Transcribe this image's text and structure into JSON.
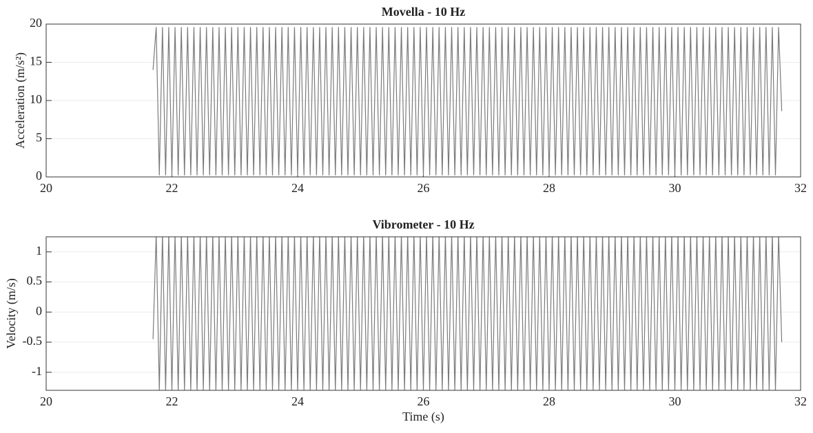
{
  "chart_data": [
    {
      "type": "line",
      "title": "Movella - 10 Hz",
      "y_label": "Acceleration (m/s²)",
      "color": "#7a7a7a",
      "grid": true,
      "xlim": [
        20,
        32
      ],
      "xticks": [
        20,
        22,
        24,
        26,
        28,
        30,
        32
      ],
      "ylim": [
        0,
        20
      ],
      "yticks": [
        0,
        5,
        10,
        15,
        20
      ],
      "x": [
        21.7,
        21.75,
        21.8,
        21.85,
        21.9,
        21.95,
        22,
        22.05,
        22.1,
        22.15,
        22.2,
        22.25,
        22.3,
        22.35,
        22.4,
        22.45,
        22.5,
        22.55,
        22.6,
        22.65,
        22.7,
        22.75,
        22.8,
        22.85,
        22.9,
        22.95,
        23,
        23.05,
        23.1,
        23.15,
        23.2,
        23.25,
        23.3,
        23.35,
        23.4,
        23.45,
        23.5,
        23.55,
        23.6,
        23.65,
        23.7,
        23.75,
        23.8,
        23.85,
        23.9,
        23.95,
        24,
        24.05,
        24.1,
        24.15,
        24.2,
        24.25,
        24.3,
        24.35,
        24.4,
        24.45,
        24.5,
        24.55,
        24.6,
        24.65,
        24.7,
        24.75,
        24.8,
        24.85,
        24.9,
        24.95,
        25,
        25.05,
        25.1,
        25.15,
        25.2,
        25.25,
        25.3,
        25.35,
        25.4,
        25.45,
        25.5,
        25.55,
        25.6,
        25.65,
        25.7,
        25.75,
        25.8,
        25.85,
        25.9,
        25.95,
        26,
        26.05,
        26.1,
        26.15,
        26.2,
        26.25,
        26.3,
        26.35,
        26.4,
        26.45,
        26.5,
        26.55,
        26.6,
        26.65,
        26.7,
        26.75,
        26.8,
        26.85,
        26.9,
        26.95,
        27,
        27.05,
        27.1,
        27.15,
        27.2,
        27.25,
        27.3,
        27.35,
        27.4,
        27.45,
        27.5,
        27.55,
        27.6,
        27.65,
        27.7,
        27.75,
        27.8,
        27.85,
        27.9,
        27.95,
        28,
        28.05,
        28.1,
        28.15,
        28.2,
        28.25,
        28.3,
        28.35,
        28.4,
        28.45,
        28.5,
        28.55,
        28.6,
        28.65,
        28.7,
        28.75,
        28.8,
        28.85,
        28.9,
        28.95,
        29,
        29.05,
        29.1,
        29.15,
        29.2,
        29.25,
        29.3,
        29.35,
        29.4,
        29.45,
        29.5,
        29.55,
        29.6,
        29.65,
        29.7,
        29.75,
        29.8,
        29.85,
        29.9,
        29.95,
        30,
        30.05,
        30.1,
        30.15,
        30.2,
        30.25,
        30.3,
        30.35,
        30.4,
        30.45,
        30.5,
        30.55,
        30.6,
        30.65,
        30.7,
        30.75,
        30.8,
        30.85,
        30.9,
        30.95,
        31,
        31.05,
        31.1,
        31.15,
        31.2,
        31.25,
        31.3,
        31.35,
        31.4,
        31.45,
        31.5,
        31.55,
        31.6,
        31.65,
        31.7
      ],
      "values": [
        14,
        19.6,
        0.2,
        19.6,
        0.2,
        19.6,
        0.2,
        19.6,
        0.2,
        19.6,
        0.2,
        19.6,
        0.2,
        19.6,
        0.2,
        19.6,
        0.2,
        19.6,
        0.2,
        19.6,
        0.2,
        19.6,
        0.2,
        19.6,
        0.2,
        19.6,
        0.2,
        19.6,
        0.2,
        19.6,
        0.2,
        19.6,
        0.2,
        19.6,
        0.2,
        19.6,
        0.2,
        19.6,
        0.2,
        19.6,
        0.2,
        19.6,
        0.2,
        19.6,
        0.2,
        19.6,
        0.2,
        19.6,
        0.2,
        19.6,
        0.2,
        19.6,
        0.2,
        19.6,
        0.2,
        19.6,
        0.2,
        19.6,
        0.2,
        19.6,
        0.2,
        19.6,
        0.2,
        19.6,
        0.2,
        19.6,
        0.2,
        19.6,
        0.2,
        19.6,
        0.2,
        19.6,
        0.2,
        19.6,
        0.2,
        19.6,
        0.2,
        19.6,
        0.2,
        19.6,
        0.2,
        19.6,
        0.2,
        19.6,
        0.2,
        19.6,
        0.2,
        19.6,
        0.2,
        19.6,
        0.2,
        19.6,
        0.2,
        19.6,
        0.2,
        19.6,
        0.2,
        19.6,
        0.2,
        19.6,
        0.2,
        19.6,
        0.2,
        19.6,
        0.2,
        19.6,
        0.2,
        19.6,
        0.2,
        19.6,
        0.2,
        19.6,
        0.2,
        19.6,
        0.2,
        19.6,
        0.2,
        19.6,
        0.2,
        19.6,
        0.2,
        19.6,
        0.2,
        19.6,
        0.2,
        19.6,
        0.2,
        19.6,
        0.2,
        19.6,
        0.2,
        19.6,
        0.2,
        19.6,
        0.2,
        19.6,
        0.2,
        19.6,
        0.2,
        19.6,
        0.2,
        19.6,
        0.2,
        19.6,
        0.2,
        19.6,
        0.2,
        19.6,
        0.2,
        19.6,
        0.2,
        19.6,
        0.2,
        19.6,
        0.2,
        19.6,
        0.2,
        19.6,
        0.2,
        19.6,
        0.2,
        19.6,
        0.2,
        19.6,
        0.2,
        19.6,
        0.2,
        19.6,
        0.2,
        19.6,
        0.2,
        19.6,
        0.2,
        19.6,
        0.2,
        19.6,
        0.2,
        19.6,
        0.2,
        19.6,
        0.2,
        19.6,
        0.2,
        19.6,
        0.2,
        19.6,
        0.2,
        19.6,
        0.2,
        19.6,
        0.2,
        19.6,
        0.2,
        19.6,
        0.2,
        19.6,
        0.2,
        19.6,
        0.2,
        19.6,
        8.6
      ]
    },
    {
      "type": "line",
      "title": "Vibrometer - 10 Hz",
      "y_label": "Velocity (m/s)",
      "x_label": "Time (s)",
      "color": "#7a7a7a",
      "grid": true,
      "xlim": [
        20,
        32
      ],
      "xticks": [
        20,
        22,
        24,
        26,
        28,
        30,
        32
      ],
      "ylim": [
        -1.3,
        1.25
      ],
      "yticks": [
        -1,
        -0.5,
        0,
        0.5,
        1
      ],
      "x": [
        21.7,
        21.75,
        21.8,
        21.85,
        21.9,
        21.95,
        22,
        22.05,
        22.1,
        22.15,
        22.2,
        22.25,
        22.3,
        22.35,
        22.4,
        22.45,
        22.5,
        22.55,
        22.6,
        22.65,
        22.7,
        22.75,
        22.8,
        22.85,
        22.9,
        22.95,
        23,
        23.05,
        23.1,
        23.15,
        23.2,
        23.25,
        23.3,
        23.35,
        23.4,
        23.45,
        23.5,
        23.55,
        23.6,
        23.65,
        23.7,
        23.75,
        23.8,
        23.85,
        23.9,
        23.95,
        24,
        24.05,
        24.1,
        24.15,
        24.2,
        24.25,
        24.3,
        24.35,
        24.4,
        24.45,
        24.5,
        24.55,
        24.6,
        24.65,
        24.7,
        24.75,
        24.8,
        24.85,
        24.9,
        24.95,
        25,
        25.05,
        25.1,
        25.15,
        25.2,
        25.25,
        25.3,
        25.35,
        25.4,
        25.45,
        25.5,
        25.55,
        25.6,
        25.65,
        25.7,
        25.75,
        25.8,
        25.85,
        25.9,
        25.95,
        26,
        26.05,
        26.1,
        26.15,
        26.2,
        26.25,
        26.3,
        26.35,
        26.4,
        26.45,
        26.5,
        26.55,
        26.6,
        26.65,
        26.7,
        26.75,
        26.8,
        26.85,
        26.9,
        26.95,
        27,
        27.05,
        27.1,
        27.15,
        27.2,
        27.25,
        27.3,
        27.35,
        27.4,
        27.45,
        27.5,
        27.55,
        27.6,
        27.65,
        27.7,
        27.75,
        27.8,
        27.85,
        27.9,
        27.95,
        28,
        28.05,
        28.1,
        28.15,
        28.2,
        28.25,
        28.3,
        28.35,
        28.4,
        28.45,
        28.5,
        28.55,
        28.6,
        28.65,
        28.7,
        28.75,
        28.8,
        28.85,
        28.9,
        28.95,
        29,
        29.05,
        29.1,
        29.15,
        29.2,
        29.25,
        29.3,
        29.35,
        29.4,
        29.45,
        29.5,
        29.55,
        29.6,
        29.65,
        29.7,
        29.75,
        29.8,
        29.85,
        29.9,
        29.95,
        30,
        30.05,
        30.1,
        30.15,
        30.2,
        30.25,
        30.3,
        30.35,
        30.4,
        30.45,
        30.5,
        30.55,
        30.6,
        30.65,
        30.7,
        30.75,
        30.8,
        30.85,
        30.9,
        30.95,
        31,
        31.05,
        31.1,
        31.15,
        31.2,
        31.25,
        31.3,
        31.35,
        31.4,
        31.45,
        31.5,
        31.55,
        31.6,
        31.65,
        31.7
      ],
      "values": [
        -0.45,
        1.3,
        -1.3,
        1.3,
        -1.3,
        1.3,
        -1.3,
        1.3,
        -1.3,
        1.3,
        -1.3,
        1.3,
        -1.3,
        1.3,
        -1.3,
        1.3,
        -1.3,
        1.3,
        -1.3,
        1.3,
        -1.3,
        1.3,
        -1.3,
        1.3,
        -1.3,
        1.3,
        -1.3,
        1.3,
        -1.3,
        1.3,
        -1.3,
        1.3,
        -1.3,
        1.3,
        -1.3,
        1.3,
        -1.3,
        1.3,
        -1.3,
        1.3,
        -1.3,
        1.3,
        -1.3,
        1.3,
        -1.3,
        1.3,
        -1.3,
        1.3,
        -1.3,
        1.3,
        -1.3,
        1.3,
        -1.3,
        1.3,
        -1.3,
        1.3,
        -1.3,
        1.3,
        -1.3,
        1.3,
        -1.3,
        1.3,
        -1.3,
        1.3,
        -1.3,
        1.3,
        -1.3,
        1.3,
        -1.3,
        1.3,
        -1.3,
        1.3,
        -1.3,
        1.3,
        -1.3,
        1.3,
        -1.3,
        1.3,
        -1.3,
        1.3,
        -1.3,
        1.3,
        -1.3,
        1.3,
        -1.3,
        1.3,
        -1.3,
        1.3,
        -1.3,
        1.3,
        -1.3,
        1.3,
        -1.3,
        1.3,
        -1.3,
        1.3,
        -1.3,
        1.3,
        -1.3,
        1.3,
        -1.3,
        1.3,
        -1.3,
        1.3,
        -1.3,
        1.3,
        -1.3,
        1.3,
        -1.3,
        1.3,
        -1.3,
        1.3,
        -1.3,
        1.3,
        -1.3,
        1.3,
        -1.3,
        1.3,
        -1.3,
        1.3,
        -1.3,
        1.3,
        -1.3,
        1.3,
        -1.3,
        1.3,
        -1.3,
        1.3,
        -1.3,
        1.3,
        -1.3,
        1.3,
        -1.3,
        1.3,
        -1.3,
        1.3,
        -1.3,
        1.3,
        -1.3,
        1.3,
        -1.3,
        1.3,
        -1.3,
        1.3,
        -1.3,
        1.3,
        -1.3,
        1.3,
        -1.3,
        1.3,
        -1.3,
        1.3,
        -1.3,
        1.3,
        -1.3,
        1.3,
        -1.3,
        1.3,
        -1.3,
        1.3,
        -1.3,
        1.3,
        -1.3,
        1.3,
        -1.3,
        1.3,
        -1.3,
        1.3,
        -1.3,
        1.3,
        -1.3,
        1.3,
        -1.3,
        1.3,
        -1.3,
        1.3,
        -1.3,
        1.3,
        -1.3,
        1.3,
        -1.3,
        1.3,
        -1.3,
        1.3,
        -1.3,
        1.3,
        -1.3,
        1.3,
        -1.3,
        1.3,
        -1.3,
        1.3,
        -1.3,
        1.3,
        -1.3,
        1.3,
        -1.3,
        1.3,
        -1.3,
        1.3,
        -0.5
      ]
    }
  ]
}
